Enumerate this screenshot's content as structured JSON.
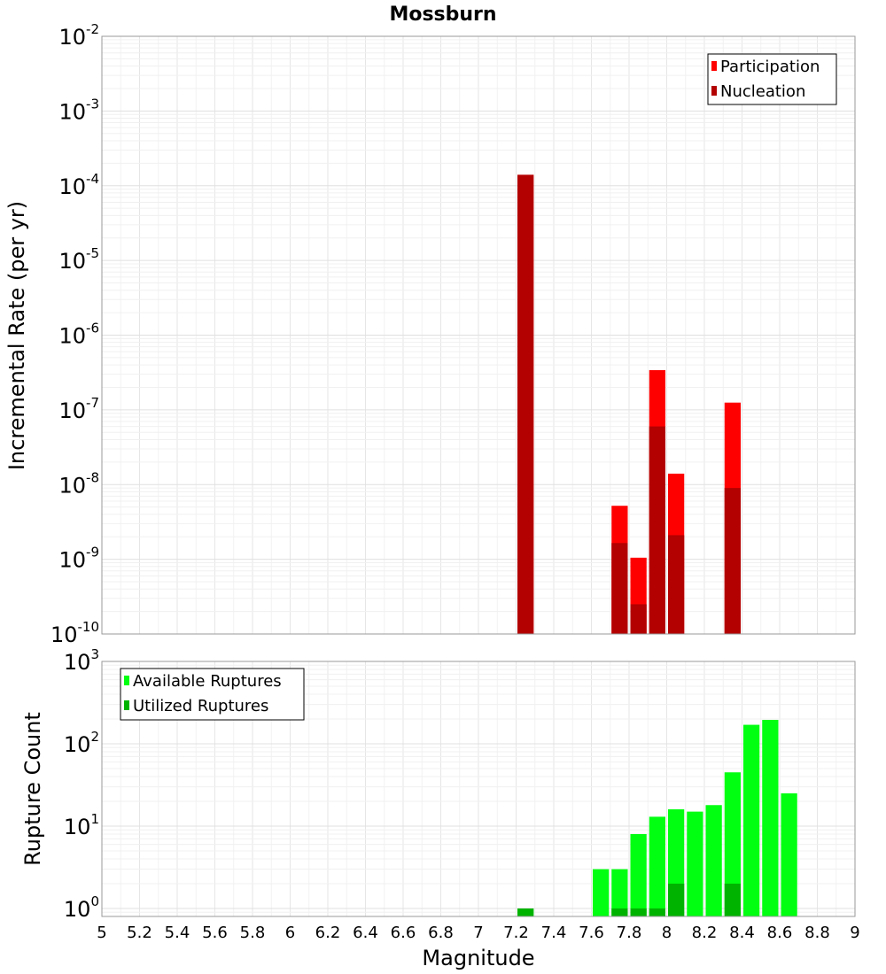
{
  "chart_data": {
    "type": "bar",
    "title": "Mossburn",
    "xlabel": "Magnitude",
    "xlim": [
      5,
      9
    ],
    "x_ticks": [
      "5",
      "5.2",
      "5.4",
      "5.6",
      "5.8",
      "6",
      "6.2",
      "6.4",
      "6.6",
      "6.8",
      "7",
      "7.2",
      "7.4",
      "7.6",
      "7.8",
      "8",
      "8.2",
      "8.4",
      "8.6",
      "8.8",
      "9"
    ],
    "bin_width": 0.1,
    "grid": true,
    "panels": [
      {
        "ylabel": "Incremental Rate (per yr)",
        "yscale": "log",
        "ylim": [
          1e-10,
          0.01
        ],
        "y_tick_exponents": [
          "-10",
          "-9",
          "-8",
          "-7",
          "-6",
          "-5",
          "-4",
          "-3",
          "-2"
        ],
        "legend_position": "top-right",
        "series": [
          {
            "name": "Participation",
            "color": "#ff0000",
            "x": [
              7.25,
              7.75,
              7.85,
              7.95,
              8.05,
              8.35
            ],
            "values": [
              0.00014,
              5.2e-09,
              1.05e-09,
              3.4e-07,
              1.4e-08,
              1.25e-07
            ]
          },
          {
            "name": "Nucleation",
            "color": "#b30000",
            "x": [
              7.25,
              7.75,
              7.85,
              7.95,
              8.05,
              8.35
            ],
            "values": [
              0.00014,
              1.65e-09,
              2.5e-10,
              6e-08,
              2.1e-09,
              9e-09
            ]
          }
        ]
      },
      {
        "ylabel": "Rupture Count",
        "yscale": "log",
        "ylim": [
          0.8,
          1000
        ],
        "y_tick_exponents": [
          "0",
          "1",
          "2",
          "3"
        ],
        "legend_position": "top-left",
        "series": [
          {
            "name": "Available Ruptures",
            "color": "#00ff11",
            "x": [
              7.25,
              7.65,
              7.75,
              7.85,
              7.95,
              8.05,
              8.15,
              8.25,
              8.35,
              8.45,
              8.55,
              8.65
            ],
            "values": [
              1,
              3,
              3,
              8,
              13,
              16,
              15,
              18,
              45,
              170,
              195,
              25
            ]
          },
          {
            "name": "Utilized Ruptures",
            "color": "#00b300",
            "x": [
              7.25,
              7.75,
              7.85,
              7.95,
              8.05,
              8.35
            ],
            "values": [
              1,
              1,
              1,
              1,
              2,
              2
            ]
          }
        ]
      }
    ]
  }
}
